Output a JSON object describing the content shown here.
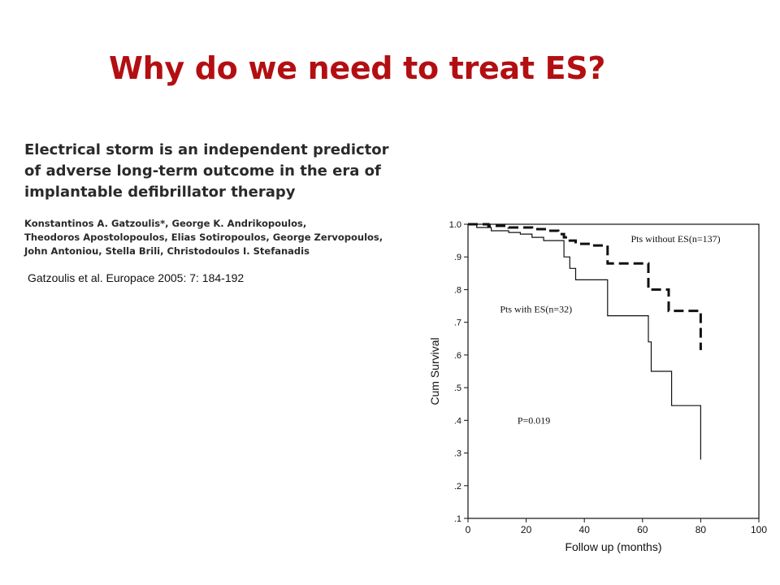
{
  "slide": {
    "title": "Why do we need to treat ES?",
    "title_color": "#b30f12"
  },
  "paper": {
    "title_lines": [
      "Electrical storm is an independent predictor",
      "of adverse long-term outcome in the era of",
      "implantable defibrillator therapy"
    ],
    "author_lines": [
      "Konstantinos A. Gatzoulis*, George K. Andrikopoulos,",
      "Theodoros Apostolopoulos, Elias Sotiropoulos, George Zervopoulos,",
      "John Antoniou, Stella Brili, Christodoulos I. Stefanadis"
    ],
    "citation": "Gatzoulis et al. Europace 2005: 7: 184-192"
  },
  "chart_data": {
    "type": "line",
    "xlabel": "Follow up (months)",
    "ylabel": "Cum Survival",
    "xlim": [
      0,
      100
    ],
    "ylim": [
      0.1,
      1.0
    ],
    "xticks": [
      0,
      20,
      40,
      60,
      80,
      100
    ],
    "xtick_labels": [
      "0",
      "20",
      "40",
      "60",
      "80",
      "100"
    ],
    "yticks": [
      1.0,
      0.9,
      0.8,
      0.7,
      0.6,
      0.5,
      0.4,
      0.3,
      0.2,
      0.1
    ],
    "ytick_labels": [
      "1.0",
      ".9",
      ".8",
      ".7",
      ".6",
      ".5",
      ".4",
      ".3",
      ".2",
      ".1"
    ],
    "grid": false,
    "series": [
      {
        "name": "Pts without ES(n=137)",
        "style": "dashed",
        "points": [
          [
            0,
            1.0
          ],
          [
            7,
            1.0
          ],
          [
            7,
            0.995
          ],
          [
            14,
            0.995
          ],
          [
            14,
            0.99
          ],
          [
            22,
            0.99
          ],
          [
            22,
            0.985
          ],
          [
            27,
            0.985
          ],
          [
            27,
            0.98
          ],
          [
            31,
            0.98
          ],
          [
            31,
            0.97
          ],
          [
            33,
            0.97
          ],
          [
            33,
            0.96
          ],
          [
            35,
            0.96
          ],
          [
            35,
            0.95
          ],
          [
            37,
            0.95
          ],
          [
            37,
            0.94
          ],
          [
            42,
            0.94
          ],
          [
            42,
            0.935
          ],
          [
            48,
            0.935
          ],
          [
            48,
            0.88
          ],
          [
            62,
            0.88
          ],
          [
            62,
            0.8
          ],
          [
            69,
            0.8
          ],
          [
            69,
            0.735
          ],
          [
            80,
            0.735
          ],
          [
            80,
            0.615
          ]
        ]
      },
      {
        "name": "Pts with ES(n=32)",
        "style": "solid",
        "points": [
          [
            0,
            1.0
          ],
          [
            3,
            1.0
          ],
          [
            3,
            0.99
          ],
          [
            8,
            0.99
          ],
          [
            8,
            0.98
          ],
          [
            14,
            0.98
          ],
          [
            14,
            0.975
          ],
          [
            18,
            0.975
          ],
          [
            18,
            0.97
          ],
          [
            22,
            0.97
          ],
          [
            22,
            0.96
          ],
          [
            26,
            0.96
          ],
          [
            26,
            0.95
          ],
          [
            33,
            0.95
          ],
          [
            33,
            0.9
          ],
          [
            35,
            0.9
          ],
          [
            35,
            0.865
          ],
          [
            37,
            0.865
          ],
          [
            37,
            0.83
          ],
          [
            48,
            0.83
          ],
          [
            48,
            0.72
          ],
          [
            62,
            0.72
          ],
          [
            62,
            0.64
          ],
          [
            63,
            0.64
          ],
          [
            63,
            0.55
          ],
          [
            70,
            0.55
          ],
          [
            70,
            0.445
          ],
          [
            80,
            0.445
          ],
          [
            80,
            0.28
          ]
        ]
      }
    ],
    "annotations": [
      {
        "text": "Pts without ES(n=137)",
        "x": 56,
        "y": 0.945
      },
      {
        "text": "Pts with ES(n=32)",
        "x": 11,
        "y": 0.73
      },
      {
        "text": "P=0.019",
        "x": 17,
        "y": 0.39
      }
    ]
  }
}
